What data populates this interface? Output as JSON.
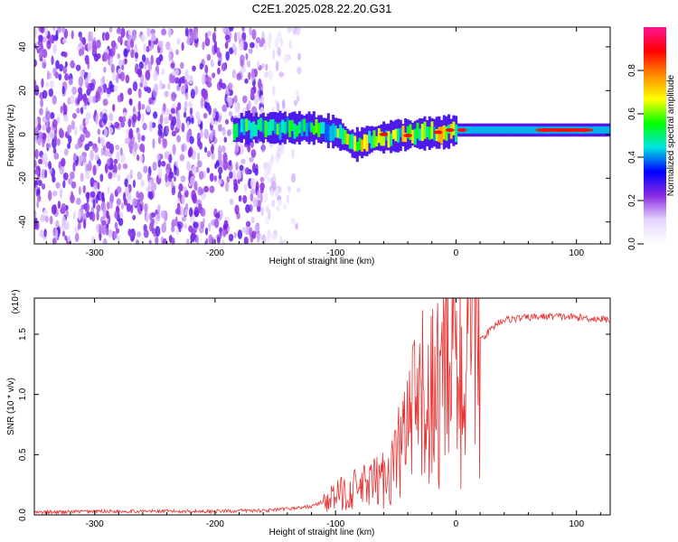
{
  "figure": {
    "title": "C2E1.2025.028.22.20.G31"
  },
  "chart_data": [
    {
      "type": "heatmap",
      "xlabel": "Height of straight line (km)",
      "ylabel": "Frequency (Hz)",
      "xlim": [
        -350,
        128
      ],
      "ylim": [
        -50,
        49
      ],
      "xticks": [
        -300,
        -200,
        -100,
        0,
        100
      ],
      "yticks": [
        -40,
        -20,
        0,
        20,
        40
      ],
      "ridge_center_freq_hz": [
        {
          "x": -180,
          "y": 3
        },
        {
          "x": -120,
          "y": 3
        },
        {
          "x": -100,
          "y": 1
        },
        {
          "x": -85,
          "y": -5
        },
        {
          "x": -70,
          "y": -2
        },
        {
          "x": -40,
          "y": 0
        },
        {
          "x": -10,
          "y": 1
        },
        {
          "x": 0,
          "y": 2
        },
        {
          "x": 50,
          "y": 2
        },
        {
          "x": 128,
          "y": 2
        }
      ],
      "colorbar": {
        "label": "Normalized spectral amplitude",
        "range": [
          0,
          1
        ],
        "ticks": [
          0.0,
          0.2,
          0.4,
          0.6,
          0.8
        ],
        "colors": [
          "#ffffff",
          "#e6d5ff",
          "#8a2be2",
          "#0000ff",
          "#00e5e5",
          "#00ff00",
          "#ffff00",
          "#ff8c00",
          "#ff0000",
          "#ff1493"
        ]
      }
    },
    {
      "type": "line",
      "xlabel": "Height of straight line (km)",
      "ylabel": "SNR (10 * v/v)",
      "y_multiplier": "(x10⁴)",
      "xlim": [
        -350,
        128
      ],
      "ylim": [
        0,
        1.8
      ],
      "xticks": [
        -300,
        -200,
        -100,
        0,
        100
      ],
      "yticks": [
        0.0,
        0.5,
        1.0,
        1.5
      ],
      "color": "#e83030",
      "series": [
        {
          "x": [
            -350,
            -300,
            -250,
            -200,
            -150,
            -120,
            -100,
            -90,
            -80,
            -70,
            -60,
            -50,
            -40,
            -30,
            -20,
            -10,
            0,
            10,
            15,
            20,
            25,
            30,
            35,
            40,
            50,
            60,
            80,
            100,
            128
          ],
          "values": [
            0.02,
            0.03,
            0.03,
            0.03,
            0.04,
            0.07,
            0.15,
            0.2,
            0.22,
            0.25,
            0.3,
            0.45,
            0.7,
            0.9,
            1.0,
            1.1,
            1.15,
            1.2,
            1.35,
            1.45,
            1.5,
            1.55,
            1.6,
            1.62,
            1.63,
            1.64,
            1.65,
            1.64,
            1.62
          ]
        }
      ]
    }
  ]
}
